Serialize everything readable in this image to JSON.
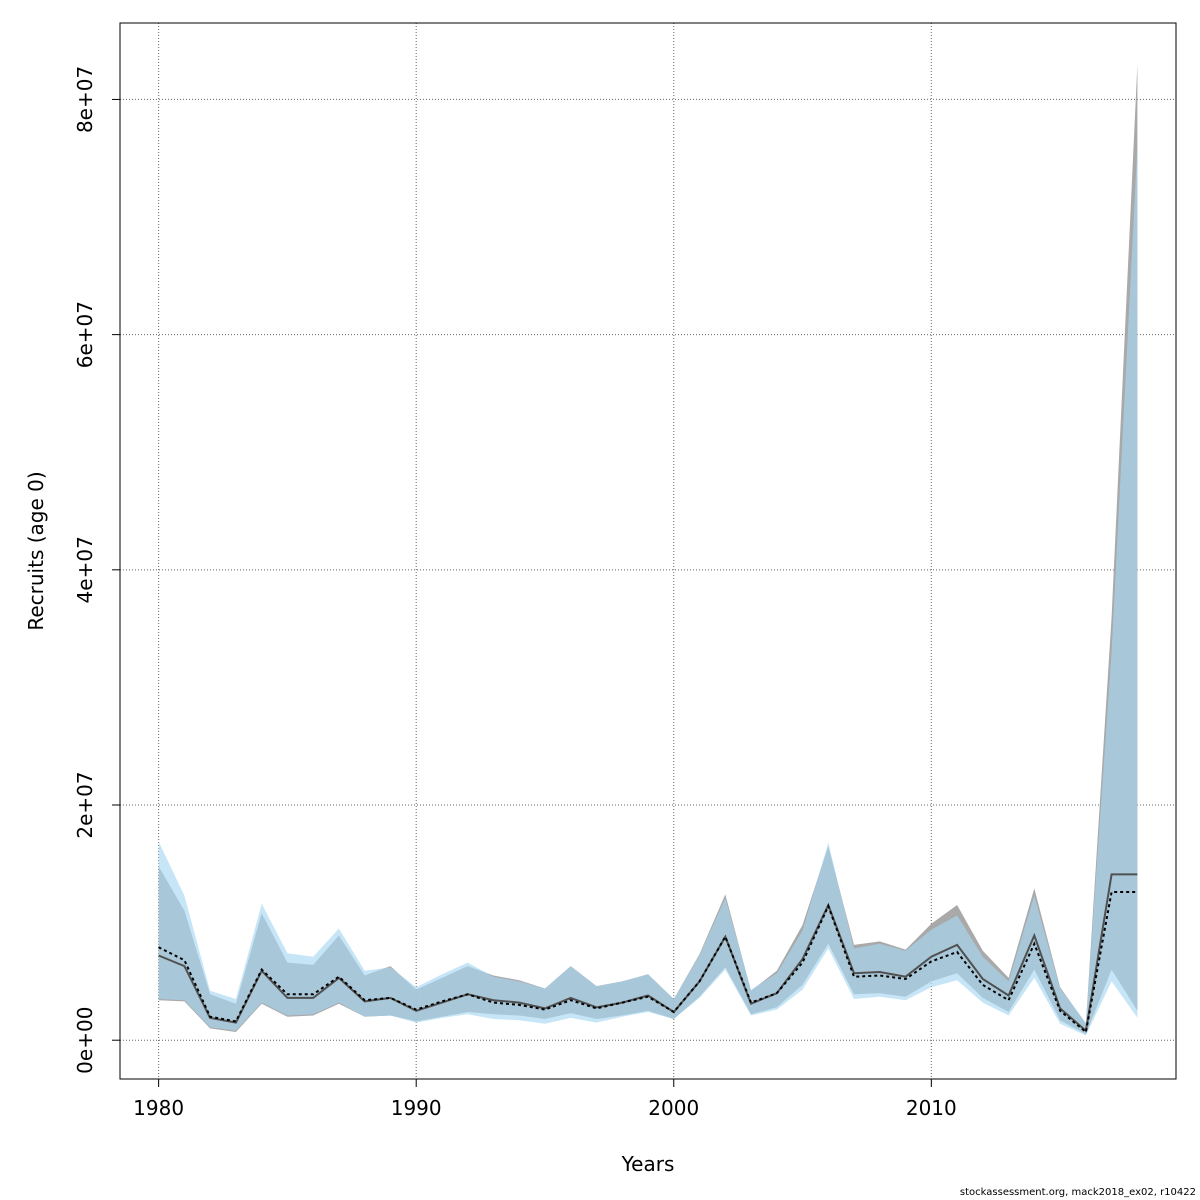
{
  "chart_data": {
    "type": "area",
    "xlabel": "Years",
    "ylabel": "Recruits (age 0)",
    "xlim": [
      1978.5,
      2019.5
    ],
    "ylim": [
      -3300000,
      86500000
    ],
    "x_ticks": [
      1980,
      1990,
      2000,
      2010
    ],
    "x_tick_labels": [
      "1980",
      "1990",
      "2000",
      "2010"
    ],
    "y_ticks": [
      0,
      20000000,
      40000000,
      60000000,
      80000000
    ],
    "y_tick_labels": [
      "0e+00",
      "2e+07",
      "4e+07",
      "6e+07",
      "8e+07"
    ],
    "grid": true,
    "x": [
      1980,
      1981,
      1982,
      1983,
      1984,
      1985,
      1986,
      1987,
      1988,
      1989,
      1990,
      1991,
      1992,
      1993,
      1994,
      1995,
      1996,
      1997,
      1998,
      1999,
      2000,
      2001,
      2002,
      2003,
      2004,
      2005,
      2006,
      2007,
      2008,
      2009,
      2010,
      2011,
      2012,
      2013,
      2014,
      2015,
      2016,
      2017,
      2018
    ],
    "series": [
      {
        "role": "model-1-estimate",
        "line_style": "solid",
        "color": "#505050",
        "values": [
          7200000,
          6300000,
          1900000,
          1500000,
          5900000,
          3600000,
          3600000,
          5300000,
          3300000,
          3600000,
          2500000,
          3200000,
          3900000,
          3400000,
          3200000,
          2700000,
          3600000,
          2800000,
          3200000,
          3800000,
          2400000,
          5000000,
          8800000,
          3100000,
          4000000,
          6900000,
          11500000,
          5700000,
          5800000,
          5400000,
          7100000,
          8100000,
          5200000,
          3800000,
          8900000,
          2700000,
          800000,
          14100000,
          14100000
        ]
      },
      {
        "role": "model-2-estimate",
        "line_style": "dotted",
        "color": "#000000",
        "values": [
          7900000,
          6800000,
          2000000,
          1600000,
          6000000,
          3900000,
          3900000,
          5400000,
          3400000,
          3600000,
          2600000,
          3300000,
          3900000,
          3200000,
          3000000,
          2600000,
          3400000,
          2700000,
          3200000,
          3700000,
          2400000,
          5000000,
          8800000,
          3200000,
          4000000,
          6600000,
          11400000,
          5400000,
          5500000,
          5200000,
          6700000,
          7500000,
          4700000,
          3400000,
          8200000,
          2500000,
          700000,
          12600000,
          12600000
        ]
      }
    ],
    "intervals": [
      {
        "role": "model-1-interval",
        "color": "#a0a0a0",
        "lower": [
          3400000,
          3300000,
          1000000,
          700000,
          3100000,
          2000000,
          2100000,
          3100000,
          2000000,
          2100000,
          1600000,
          2000000,
          2400000,
          2200000,
          2100000,
          1800000,
          2300000,
          1800000,
          2100000,
          2500000,
          1800000,
          3700000,
          6200000,
          2200000,
          2800000,
          4700000,
          8200000,
          3900000,
          4000000,
          3700000,
          5000000,
          5700000,
          3600000,
          2400000,
          6000000,
          1700000,
          500000,
          6000000,
          2500000
        ],
        "upper": [
          14800000,
          11000000,
          3900000,
          3100000,
          10800000,
          6600000,
          6400000,
          8900000,
          5500000,
          6300000,
          4300000,
          5300000,
          6300000,
          5500000,
          5100000,
          4400000,
          6300000,
          4600000,
          5000000,
          5600000,
          3500000,
          7300000,
          12400000,
          4200000,
          5900000,
          9800000,
          16500000,
          8100000,
          8400000,
          7700000,
          9900000,
          11500000,
          7600000,
          5300000,
          12900000,
          4500000,
          1400000,
          36000000,
          83000000
        ]
      },
      {
        "role": "model-2-interval",
        "color": "#a8d8f4",
        "lower": [
          3500000,
          3400000,
          1100000,
          800000,
          3200000,
          2100000,
          2200000,
          3200000,
          2000000,
          2100000,
          1500000,
          1900000,
          2200000,
          1800000,
          1700000,
          1400000,
          1900000,
          1500000,
          2000000,
          2400000,
          1800000,
          3600000,
          6000000,
          2100000,
          2600000,
          4300000,
          7800000,
          3500000,
          3700000,
          3400000,
          4500000,
          5100000,
          3200000,
          2100000,
          5300000,
          1400000,
          400000,
          5000000,
          1900000
        ],
        "upper": [
          16900000,
          12300000,
          4200000,
          3500000,
          11600000,
          7400000,
          7100000,
          9500000,
          5900000,
          6200000,
          4500000,
          5600000,
          6600000,
          5400000,
          5000000,
          4400000,
          6300000,
          4600000,
          5000000,
          5600000,
          3500000,
          7200000,
          12100000,
          4300000,
          5700000,
          9300000,
          16800000,
          7800000,
          8200000,
          7600000,
          9400000,
          10600000,
          7100000,
          5000000,
          12300000,
          4400000,
          1500000,
          33000000,
          76000000
        ]
      }
    ]
  },
  "footer": {
    "text": "stockassessment.org, mack2018_ex02, r10422"
  }
}
